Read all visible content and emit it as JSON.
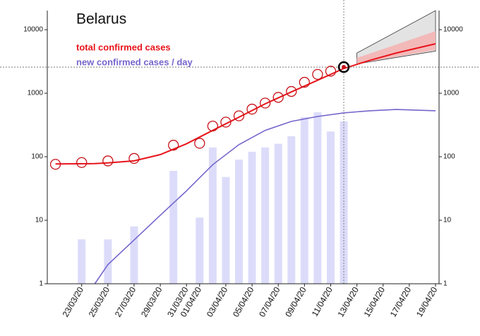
{
  "chart_data": {
    "type": "line",
    "title": "Belarus",
    "log_scale": true,
    "ylim": [
      1,
      20000
    ],
    "yticks": [
      1,
      10,
      100,
      1000,
      10000
    ],
    "xlim": [
      "20/03/20",
      "19/04/20"
    ],
    "xticks": [
      "23/03/20",
      "25/03/20",
      "27/03/20",
      "29/03/20",
      "31/03/20",
      "01/04/20",
      "03/04/20",
      "05/04/20",
      "07/04/20",
      "09/04/20",
      "11/04/20",
      "13/04/20",
      "15/04/20",
      "17/04/20",
      "19/04/20"
    ],
    "fit_x": [
      "21/03/20",
      "24/03/20",
      "25/03/20",
      "27/03/20",
      "29/03/20",
      "31/03/20",
      "02/04/20",
      "04/04/20",
      "06/04/20",
      "08/04/20",
      "10/04/20",
      "12/04/20",
      "14/04/20",
      "16/04/20",
      "19/04/20"
    ],
    "series": [
      {
        "name": "total confirmed cases",
        "color": "#e8141a",
        "x": [
          "21/03/20",
          "23/03/20",
          "25/03/20",
          "27/03/20",
          "30/03/20",
          "01/04/20",
          "02/04/20",
          "03/04/20",
          "04/04/20",
          "05/04/20",
          "06/04/20",
          "07/04/20",
          "08/04/20",
          "09/04/20",
          "10/04/20",
          "11/04/20",
          "12/04/20"
        ],
        "values": [
          76,
          81,
          86,
          94,
          152,
          163,
          304,
          351,
          440,
          562,
          700,
          861,
          1066,
          1486,
          1981,
          2226,
          2578
        ],
        "fit": [
          77,
          78,
          80,
          86,
          108,
          160,
          260,
          420,
          680,
          1050,
          1600,
          2450,
          3300,
          4300,
          6000
        ]
      },
      {
        "name": "new confirmed cases / day",
        "color": "#7566cc",
        "fit": [
          null,
          1,
          2,
          4.9,
          12,
          29,
          75,
          155,
          260,
          360,
          430,
          490,
          530,
          555,
          530
        ]
      }
    ],
    "new_cases": {
      "color": "#dcdcfa",
      "x": [
        "23/03/20",
        "25/03/20",
        "27/03/20",
        "30/03/20",
        "01/04/20",
        "02/04/20",
        "03/04/20",
        "04/04/20",
        "05/04/20",
        "06/04/20",
        "07/04/20",
        "08/04/20",
        "09/04/20",
        "10/04/20",
        "11/04/20",
        "12/04/20"
      ],
      "values": [
        5,
        5,
        8,
        60,
        11,
        140,
        48,
        90,
        120,
        140,
        160,
        210,
        420,
        500,
        250,
        360
      ]
    },
    "forecast": {
      "x": [
        "13/04/20",
        "19/04/20"
      ],
      "outer_low": [
        2900,
        4600
      ],
      "outer_high": [
        4300,
        20000
      ],
      "inner_low": [
        2900,
        4800
      ],
      "inner_high": [
        3600,
        9500
      ]
    }
  }
}
